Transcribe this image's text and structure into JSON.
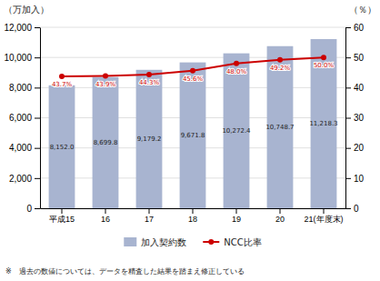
{
  "chart_data": {
    "type": "bar",
    "categories": [
      "平成15",
      "16",
      "17",
      "18",
      "19",
      "20",
      "21(年度末)"
    ],
    "series": [
      {
        "name": "加入契約数",
        "type": "bar",
        "color": "#a8b4d0",
        "values": [
          8152.0,
          8699.8,
          9179.2,
          9671.8,
          10272.4,
          10748.7,
          11218.3
        ],
        "value_labels": [
          "8,152.0",
          "8,699.8",
          "9,179.2",
          "9,671.8",
          "10,272.4",
          "10,748.7",
          "11,218.3"
        ]
      },
      {
        "name": "NCC比率",
        "type": "line",
        "color": "#cc0000",
        "axis": "y2",
        "marker": "circle",
        "values": [
          43.7,
          43.9,
          44.3,
          45.6,
          48.0,
          49.2,
          50.0
        ],
        "value_labels": [
          "43.7%",
          "43.9%",
          "44.3%",
          "45.6%",
          "48.0%",
          "49.2%",
          "50.0%"
        ]
      }
    ],
    "ylabel": "（万加入）",
    "y2label": "（％）",
    "ylim": [
      0,
      12000
    ],
    "yticks": [
      0,
      {
        "value": 2000,
        "label": "2,000"
      },
      {
        "value": 4000,
        "label": "4,000"
      },
      {
        "value": 6000,
        "label": "6,000"
      },
      {
        "value": 8000,
        "label": "8,000"
      },
      {
        "value": 10000,
        "label": "10,000"
      },
      {
        "value": 12000,
        "label": "12,000"
      }
    ],
    "y2lim": [
      0,
      60
    ],
    "y2ticks": [
      0,
      10,
      20,
      30,
      40,
      50,
      60
    ],
    "grid": true,
    "legend": "bottom",
    "data_labels": true,
    "annotations": [
      "※　過去の数値については、データを精査した結果を踏まえ修正している"
    ]
  }
}
